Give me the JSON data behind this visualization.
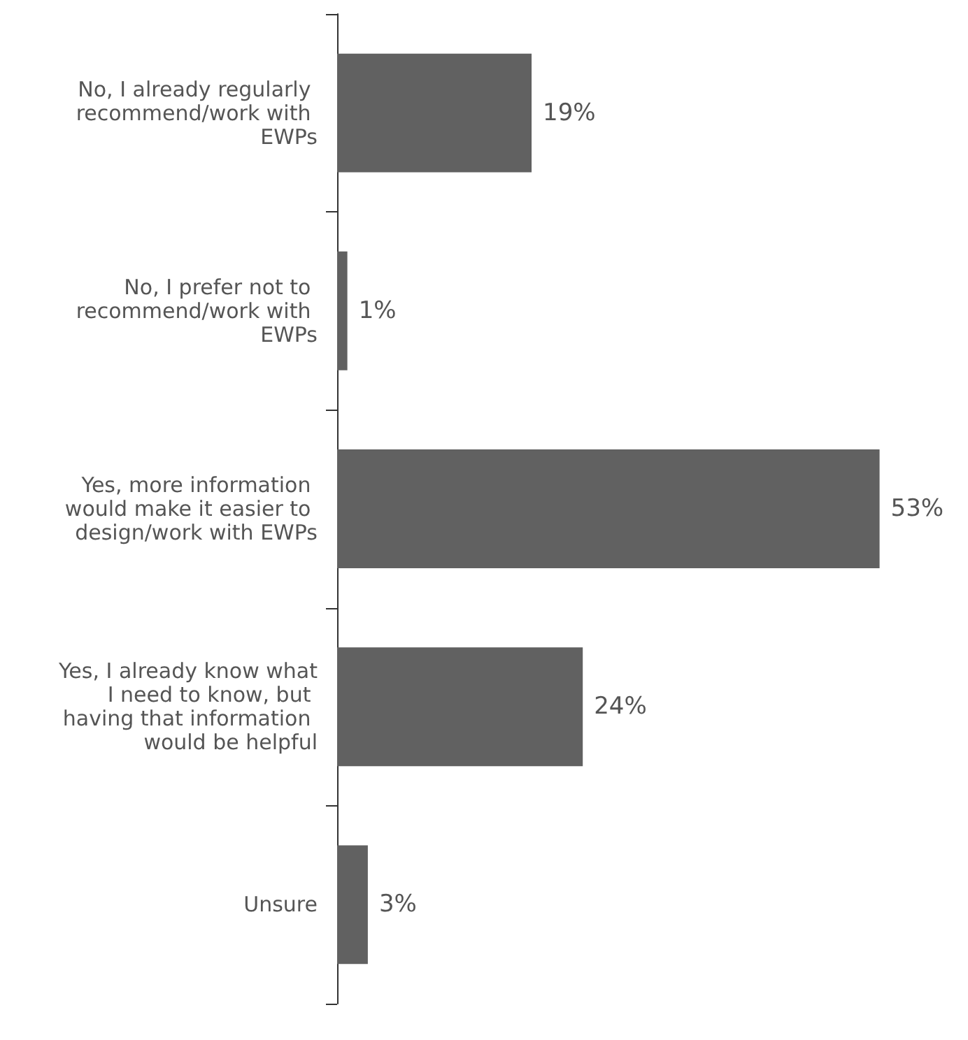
{
  "chart_data": {
    "type": "bar",
    "orientation": "horizontal",
    "categories": [
      "No, I already regularly recommend/work with EWPs",
      "No, I prefer not to recommend/work with EWPs",
      "Yes, more information would make it easier to design/work with EWPs",
      "Yes, I already know what I need to know, but having that information would be helpful",
      "Unsure"
    ],
    "values": [
      19,
      1,
      53,
      24,
      3
    ],
    "color": "#616161",
    "value_labels": [
      "19%",
      "1%",
      "53%",
      "24%",
      "3%"
    ]
  }
}
